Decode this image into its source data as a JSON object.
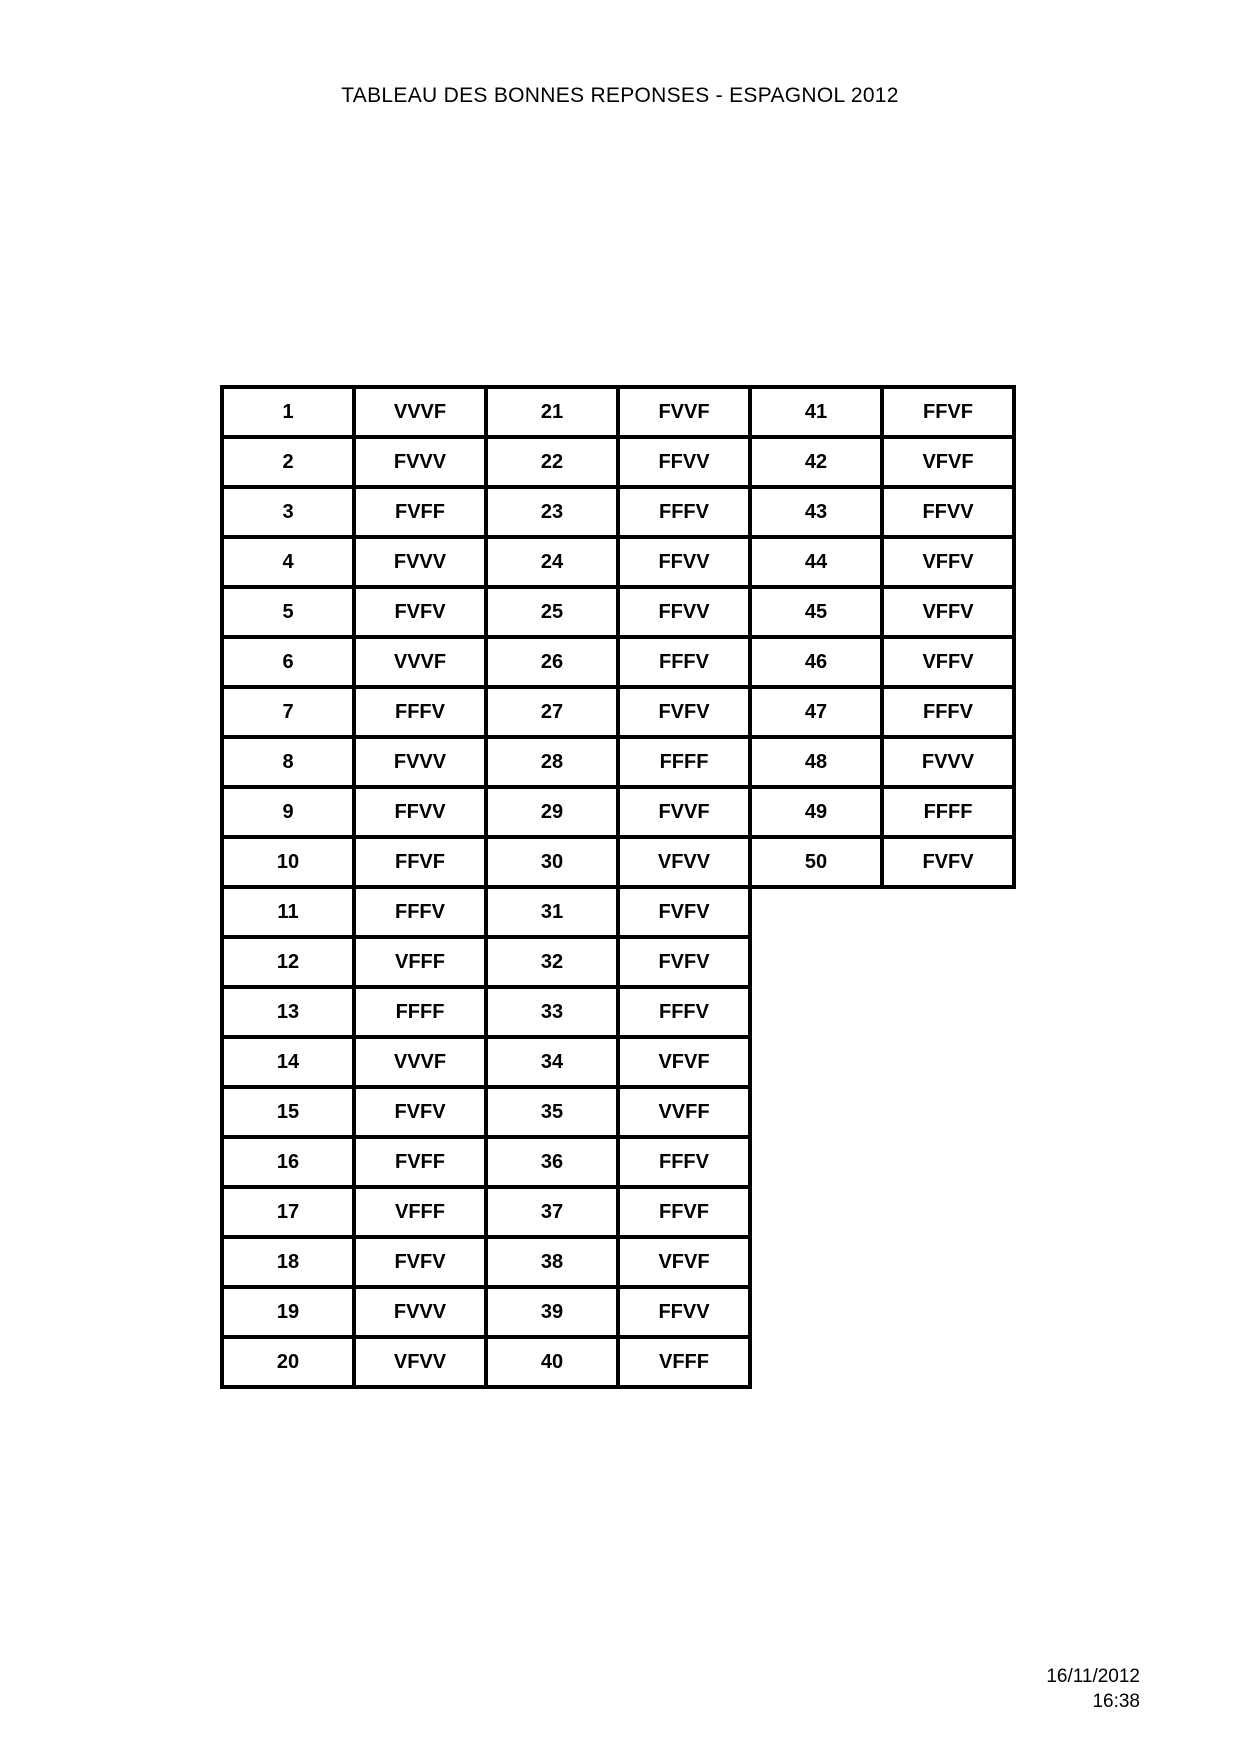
{
  "page": {
    "title": "TABLEAU DES BONNES REPONSES - ESPAGNOL 2012"
  },
  "answer_table": {
    "group_size": 20,
    "answers": [
      {
        "q": "1",
        "a": "VVVF"
      },
      {
        "q": "2",
        "a": "FVVV"
      },
      {
        "q": "3",
        "a": "FVFF"
      },
      {
        "q": "4",
        "a": "FVVV"
      },
      {
        "q": "5",
        "a": "FVFV"
      },
      {
        "q": "6",
        "a": "VVVF"
      },
      {
        "q": "7",
        "a": "FFFV"
      },
      {
        "q": "8",
        "a": "FVVV"
      },
      {
        "q": "9",
        "a": "FFVV"
      },
      {
        "q": "10",
        "a": "FFVF"
      },
      {
        "q": "11",
        "a": "FFFV"
      },
      {
        "q": "12",
        "a": "VFFF"
      },
      {
        "q": "13",
        "a": "FFFF"
      },
      {
        "q": "14",
        "a": "VVVF"
      },
      {
        "q": "15",
        "a": "FVFV"
      },
      {
        "q": "16",
        "a": "FVFF"
      },
      {
        "q": "17",
        "a": "VFFF"
      },
      {
        "q": "18",
        "a": "FVFV"
      },
      {
        "q": "19",
        "a": "FVVV"
      },
      {
        "q": "20",
        "a": "VFVV"
      },
      {
        "q": "21",
        "a": "FVVF"
      },
      {
        "q": "22",
        "a": "FFVV"
      },
      {
        "q": "23",
        "a": "FFFV"
      },
      {
        "q": "24",
        "a": "FFVV"
      },
      {
        "q": "25",
        "a": "FFVV"
      },
      {
        "q": "26",
        "a": "FFFV"
      },
      {
        "q": "27",
        "a": "FVFV"
      },
      {
        "q": "28",
        "a": "FFFF"
      },
      {
        "q": "29",
        "a": "FVVF"
      },
      {
        "q": "30",
        "a": "VFVV"
      },
      {
        "q": "31",
        "a": "FVFV"
      },
      {
        "q": "32",
        "a": "FVFV"
      },
      {
        "q": "33",
        "a": "FFFV"
      },
      {
        "q": "34",
        "a": "VFVF"
      },
      {
        "q": "35",
        "a": "VVFF"
      },
      {
        "q": "36",
        "a": "FFFV"
      },
      {
        "q": "37",
        "a": "FFVF"
      },
      {
        "q": "38",
        "a": "VFVF"
      },
      {
        "q": "39",
        "a": "FFVV"
      },
      {
        "q": "40",
        "a": "VFFF"
      },
      {
        "q": "41",
        "a": "FFVF"
      },
      {
        "q": "42",
        "a": "VFVF"
      },
      {
        "q": "43",
        "a": "FFVV"
      },
      {
        "q": "44",
        "a": "VFFV"
      },
      {
        "q": "45",
        "a": "VFFV"
      },
      {
        "q": "46",
        "a": "VFFV"
      },
      {
        "q": "47",
        "a": "FFFV"
      },
      {
        "q": "48",
        "a": "FVVV"
      },
      {
        "q": "49",
        "a": "FFFF"
      },
      {
        "q": "50",
        "a": "FVFV"
      }
    ]
  },
  "footer": {
    "date": "16/11/2012",
    "time": "16:38"
  },
  "colors": {
    "text": "#000000",
    "border": "#000000",
    "background": "#ffffff"
  }
}
